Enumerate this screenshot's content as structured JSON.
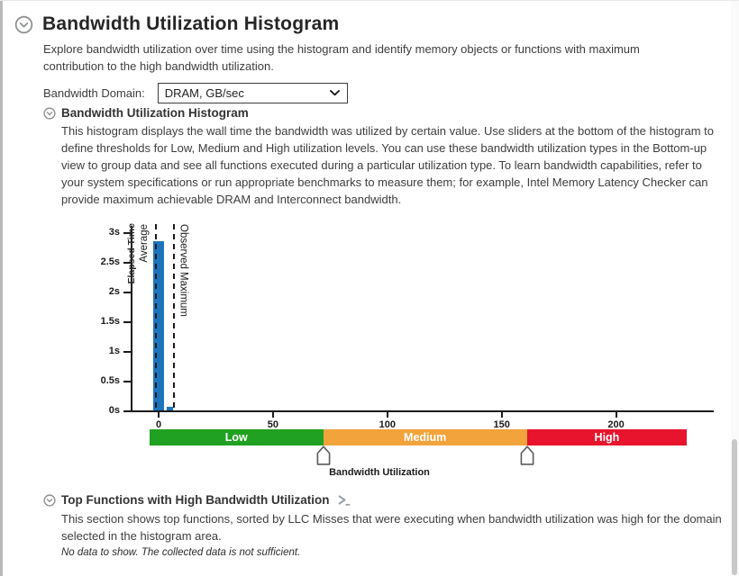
{
  "main_section": {
    "title": "Bandwidth Utilization Histogram",
    "description": "Explore bandwidth utilization over time using the histogram and identify memory objects or functions with maximum contribution to the high bandwidth utilization."
  },
  "bandwidth_domain": {
    "label": "Bandwidth Domain:",
    "selected_option": "DRAM, GB/sec"
  },
  "histogram_section": {
    "title": "Bandwidth Utilization Histogram",
    "description": "This histogram displays the wall time the bandwidth was utilized by certain value. Use sliders at the bottom of the histogram to define thresholds for Low, Medium and High utilization levels. You can use these bandwidth utilization types in the Bottom-up view to group data and see all functions executed during a particular utilization type. To learn bandwidth capabilities, refer to your system specifications or run appropriate benchmarks to measure them; for example, Intel Memory Latency Checker can provide maximum achievable DRAM and Interconnect bandwidth."
  },
  "chart_data": {
    "type": "bar",
    "title": "Bandwidth Utilization Histogram",
    "xlabel": "Bandwidth Utilization",
    "ylabel": "Elapsed Time",
    "x_unit": "GB/sec",
    "x_ticks": [
      0,
      50,
      100,
      150,
      200
    ],
    "xlim": [
      -12,
      243
    ],
    "y_ticks": [
      {
        "label": "0s",
        "seconds": 0
      },
      {
        "label": "0.5s",
        "seconds": 0.5
      },
      {
        "label": "1s",
        "seconds": 1
      },
      {
        "label": "1.5s",
        "seconds": 1.5
      },
      {
        "label": "2s",
        "seconds": 2
      },
      {
        "label": "2.5s",
        "seconds": 2.5
      },
      {
        "label": "3s",
        "seconds": 3
      }
    ],
    "ylim_seconds": [
      0,
      3
    ],
    "grid": false,
    "legend_position": "none",
    "bar_color": "#1C75BC",
    "bars": [
      {
        "x_from": -2.5,
        "x_to": 2.5,
        "elapsed_time_s": 2.85
      },
      {
        "x_from": 3.5,
        "x_to": 6.5,
        "elapsed_time_s": 0.06
      }
    ],
    "reference_lines": [
      {
        "label": "Average",
        "x": -1
      },
      {
        "label": "Observed Maximum",
        "x": 6.8
      }
    ],
    "utilization_bands": [
      {
        "label": "Low",
        "from": -4,
        "to": 72,
        "color": "#21A121"
      },
      {
        "label": "Medium",
        "from": 72,
        "to": 161,
        "color": "#F2A33C"
      },
      {
        "label": "High",
        "from": 161,
        "to": 231,
        "color": "#E8132D"
      }
    ],
    "slider_thresholds": [
      72,
      161
    ]
  },
  "top_functions_section": {
    "title": "Top Functions with High Bandwidth Utilization",
    "description": "This section shows top functions, sorted by LLC Misses that were executing when bandwidth utilization was high for the domain selected in the histogram area.",
    "no_data_message": "No data to show. The collected data is not sufficient."
  }
}
